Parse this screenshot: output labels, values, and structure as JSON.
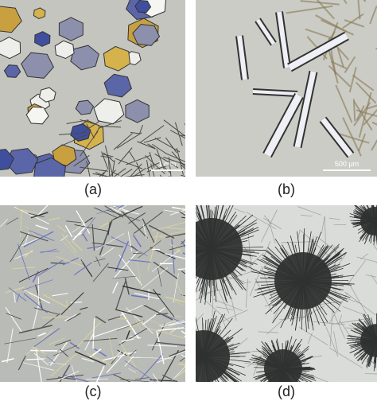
{
  "panels": [
    {
      "label": "(a)",
      "scale_bar": "1 mm"
    },
    {
      "label": "(b)",
      "scale_bar": "500 μm"
    },
    {
      "label": "(c)"
    },
    {
      "label": "(d)"
    }
  ]
}
